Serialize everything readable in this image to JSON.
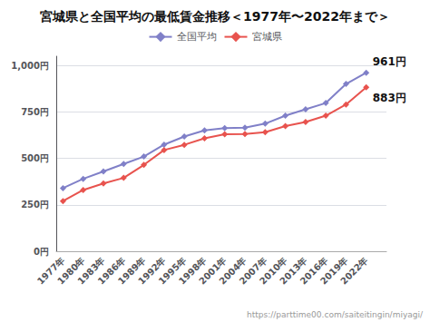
{
  "chart_data": {
    "type": "line",
    "title": "宮城県と全国平均の最低賃金推移＜1977年〜2022年まで＞",
    "x": [
      1977,
      1980,
      1983,
      1986,
      1989,
      1992,
      1995,
      1998,
      2001,
      2004,
      2007,
      2010,
      2013,
      2016,
      2019,
      2022
    ],
    "xlim": [
      1976,
      2025
    ],
    "xticks": [
      {
        "value": 1977,
        "label": "1977年"
      },
      {
        "value": 1980,
        "label": "1980年"
      },
      {
        "value": 1983,
        "label": "1983年"
      },
      {
        "value": 1986,
        "label": "1986年"
      },
      {
        "value": 1989,
        "label": "1989年"
      },
      {
        "value": 1992,
        "label": "1992年"
      },
      {
        "value": 1995,
        "label": "1995年"
      },
      {
        "value": 1998,
        "label": "1998年"
      },
      {
        "value": 2001,
        "label": "2001年"
      },
      {
        "value": 2004,
        "label": "2004年"
      },
      {
        "value": 2007,
        "label": "2007年"
      },
      {
        "value": 2010,
        "label": "2010年"
      },
      {
        "value": 2013,
        "label": "2013年"
      },
      {
        "value": 2016,
        "label": "2016年"
      },
      {
        "value": 2019,
        "label": "2019年"
      },
      {
        "value": 2022,
        "label": "2022年"
      }
    ],
    "series": [
      {
        "name": "全国平均",
        "color": "#8080c8",
        "marker": "diamond",
        "values": [
          340,
          390,
          430,
          470,
          510,
          574,
          618,
          651,
          663,
          665,
          687,
          730,
          764,
          798,
          901,
          961
        ]
      },
      {
        "name": "宮城県",
        "color": "#e8534e",
        "marker": "diamond",
        "values": [
          270,
          330,
          365,
          395,
          465,
          545,
          573,
          608,
          630,
          631,
          641,
          674,
          696,
          730,
          790,
          883
        ]
      }
    ],
    "ylim": [
      0,
      1050
    ],
    "yticks": [
      {
        "value": 0,
        "label": "0円"
      },
      {
        "value": 250,
        "label": "250円"
      },
      {
        "value": 500,
        "label": "500円"
      },
      {
        "value": 750,
        "label": "750円"
      },
      {
        "value": 1000,
        "label": "1,000円"
      }
    ],
    "grid": true,
    "legend": "top",
    "annotations": [
      {
        "text": "961円",
        "x": 2022,
        "y": 961
      },
      {
        "text": "883円",
        "x": 2022,
        "y": 883
      },
      {
        "text": "https://parttime00.com/saiteitingin/miyagi/"
      }
    ]
  }
}
